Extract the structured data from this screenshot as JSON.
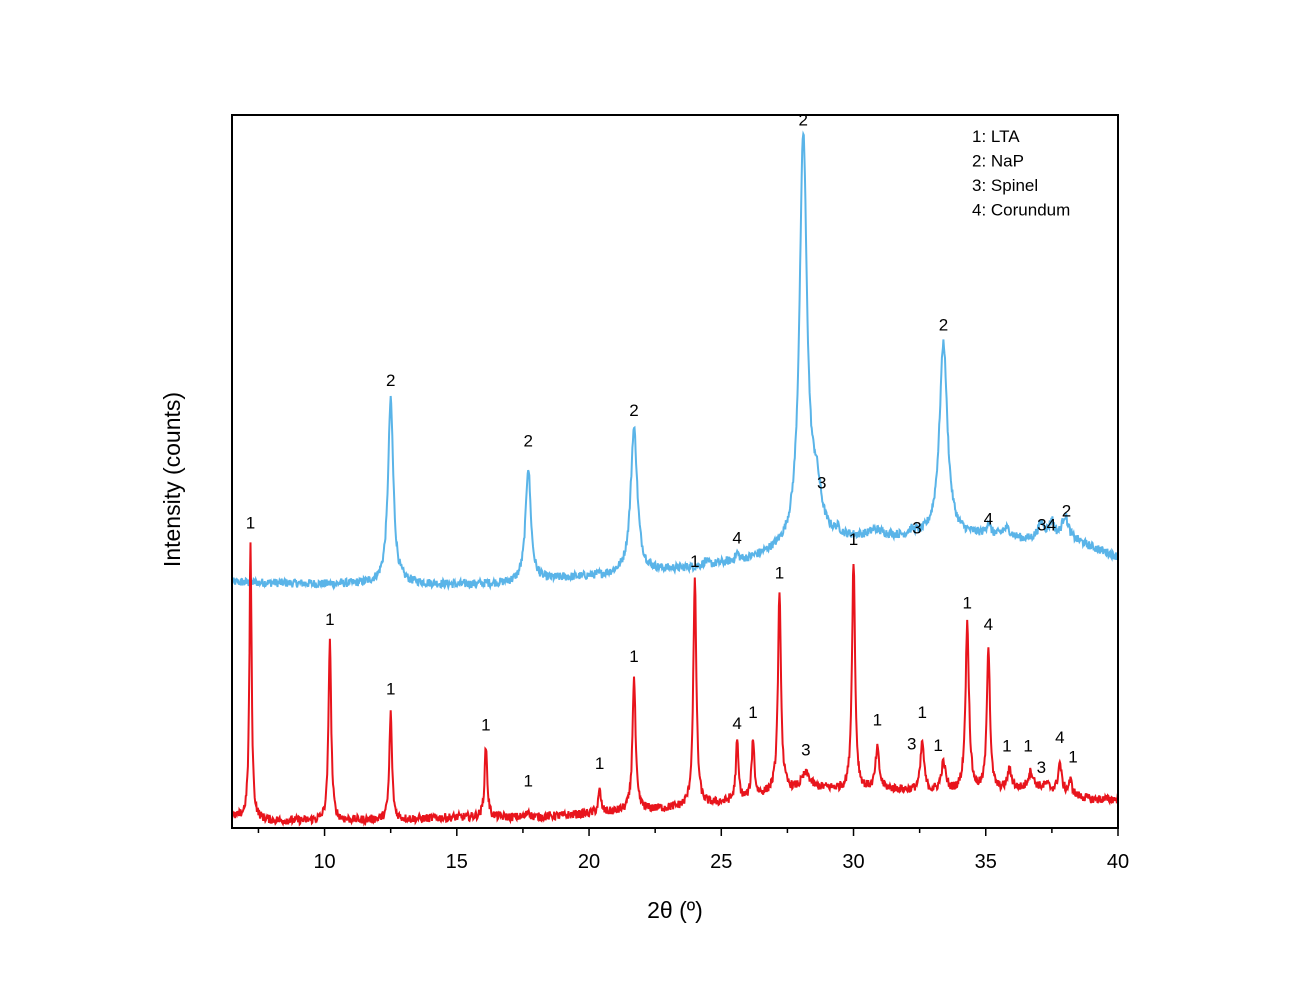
{
  "chart_data": {
    "type": "line",
    "title": "",
    "xlabel": "2θ (º)",
    "ylabel": "Intensity (counts)",
    "xlim": [
      6.5,
      40
    ],
    "ylim": [
      0,
      1.0
    ],
    "x_ticks": [
      10,
      15,
      20,
      25,
      30,
      35,
      40
    ],
    "y_ticks_shown": false,
    "grid": false,
    "legend_position": "top-right",
    "legend": [
      "1: LTA",
      "2: NaP",
      "3: Spinel",
      "4: Corundum"
    ],
    "series": [
      {
        "color": "#5ab4e8",
        "baseline": [
          [
            6.5,
            0.345
          ],
          [
            10,
            0.342
          ],
          [
            13,
            0.343
          ],
          [
            15,
            0.341
          ],
          [
            17,
            0.343
          ],
          [
            19,
            0.35
          ],
          [
            21,
            0.355
          ],
          [
            24,
            0.365
          ],
          [
            26,
            0.375
          ],
          [
            27,
            0.385
          ],
          [
            29,
            0.4
          ],
          [
            31,
            0.41
          ],
          [
            32,
            0.405
          ],
          [
            35,
            0.41
          ],
          [
            37,
            0.4
          ],
          [
            38.5,
            0.4
          ],
          [
            40,
            0.38
          ]
        ],
        "peaks": [
          {
            "x": 12.5,
            "y": 0.6,
            "w": 0.12
          },
          {
            "x": 17.7,
            "y": 0.505,
            "w": 0.12
          },
          {
            "x": 21.7,
            "y": 0.56,
            "w": 0.15
          },
          {
            "x": 24.4,
            "y": 0.373,
            "w": 0.08
          },
          {
            "x": 25.6,
            "y": 0.383,
            "w": 0.07
          },
          {
            "x": 28.1,
            "y": 0.965,
            "w": 0.17
          },
          {
            "x": 28.6,
            "y": 0.46,
            "w": 0.22
          },
          {
            "x": 29.4,
            "y": 0.41,
            "w": 0.12
          },
          {
            "x": 30.8,
            "y": 0.415,
            "w": 0.2
          },
          {
            "x": 32.2,
            "y": 0.413,
            "w": 0.2
          },
          {
            "x": 33.4,
            "y": 0.68,
            "w": 0.18
          },
          {
            "x": 35.1,
            "y": 0.425,
            "w": 0.08
          },
          {
            "x": 35.8,
            "y": 0.418,
            "w": 0.18
          },
          {
            "x": 37.1,
            "y": 0.425,
            "w": 0.18
          },
          {
            "x": 37.5,
            "y": 0.425,
            "w": 0.12
          },
          {
            "x": 38.0,
            "y": 0.435,
            "w": 0.16
          }
        ]
      },
      {
        "color": "#e8141c",
        "baseline": [
          [
            6.5,
            0.015
          ],
          [
            8,
            0.01
          ],
          [
            10,
            0.01
          ],
          [
            13,
            0.012
          ],
          [
            15,
            0.015
          ],
          [
            18,
            0.015
          ],
          [
            20,
            0.02
          ],
          [
            22,
            0.025
          ],
          [
            24,
            0.03
          ],
          [
            26,
            0.04
          ],
          [
            27,
            0.05
          ],
          [
            29,
            0.055
          ],
          [
            30,
            0.05
          ],
          [
            31,
            0.055
          ],
          [
            33,
            0.05
          ],
          [
            35,
            0.05
          ],
          [
            37,
            0.055
          ],
          [
            39,
            0.04
          ],
          [
            40,
            0.04
          ]
        ],
        "peaks": [
          {
            "x": 7.2,
            "y": 0.4,
            "w": 0.05
          },
          {
            "x": 10.2,
            "y": 0.265,
            "w": 0.06
          },
          {
            "x": 12.5,
            "y": 0.162,
            "w": 0.06
          },
          {
            "x": 16.1,
            "y": 0.115,
            "w": 0.06
          },
          {
            "x": 17.7,
            "y": 0.025,
            "w": 0.06
          },
          {
            "x": 20.4,
            "y": 0.052,
            "w": 0.06
          },
          {
            "x": 21.7,
            "y": 0.21,
            "w": 0.07
          },
          {
            "x": 24.0,
            "y": 0.345,
            "w": 0.07
          },
          {
            "x": 25.6,
            "y": 0.12,
            "w": 0.06
          },
          {
            "x": 26.2,
            "y": 0.125,
            "w": 0.06
          },
          {
            "x": 27.2,
            "y": 0.325,
            "w": 0.07
          },
          {
            "x": 28.2,
            "y": 0.075,
            "w": 0.2
          },
          {
            "x": 30.0,
            "y": 0.375,
            "w": 0.07
          },
          {
            "x": 30.9,
            "y": 0.11,
            "w": 0.08
          },
          {
            "x": 32.6,
            "y": 0.12,
            "w": 0.08
          },
          {
            "x": 33.4,
            "y": 0.09,
            "w": 0.1
          },
          {
            "x": 34.3,
            "y": 0.285,
            "w": 0.08
          },
          {
            "x": 35.1,
            "y": 0.255,
            "w": 0.07
          },
          {
            "x": 35.9,
            "y": 0.08,
            "w": 0.1
          },
          {
            "x": 36.7,
            "y": 0.078,
            "w": 0.12
          },
          {
            "x": 37.3,
            "y": 0.06,
            "w": 0.12
          },
          {
            "x": 37.8,
            "y": 0.09,
            "w": 0.08
          },
          {
            "x": 38.2,
            "y": 0.065,
            "w": 0.08
          }
        ]
      }
    ],
    "annotations": [
      {
        "text": "1",
        "x": 7.2,
        "y": 0.42
      },
      {
        "text": "2",
        "x": 12.5,
        "y": 0.62
      },
      {
        "text": "2",
        "x": 17.7,
        "y": 0.535
      },
      {
        "text": "2",
        "x": 21.7,
        "y": 0.578
      },
      {
        "text": "1",
        "x": 24.0,
        "y": 0.366
      },
      {
        "text": "4",
        "x": 25.6,
        "y": 0.399
      },
      {
        "text": "2",
        "x": 28.1,
        "y": 0.985
      },
      {
        "text": "3",
        "x": 28.8,
        "y": 0.476
      },
      {
        "text": "1",
        "x": 30.0,
        "y": 0.397
      },
      {
        "text": "3",
        "x": 32.4,
        "y": 0.413
      },
      {
        "text": "2",
        "x": 33.4,
        "y": 0.698
      },
      {
        "text": "4",
        "x": 35.1,
        "y": 0.426
      },
      {
        "text": "34",
        "x": 37.3,
        "y": 0.417
      },
      {
        "text": "2",
        "x": 38.05,
        "y": 0.437
      },
      {
        "text": "1",
        "x": 10.2,
        "y": 0.285
      },
      {
        "text": "1",
        "x": 12.5,
        "y": 0.187
      },
      {
        "text": "1",
        "x": 16.1,
        "y": 0.137
      },
      {
        "text": "1",
        "x": 17.7,
        "y": 0.058
      },
      {
        "text": "1",
        "x": 20.4,
        "y": 0.083
      },
      {
        "text": "1",
        "x": 21.7,
        "y": 0.233
      },
      {
        "text": "1",
        "x": 27.2,
        "y": 0.35
      },
      {
        "text": "4",
        "x": 25.6,
        "y": 0.139
      },
      {
        "text": "1",
        "x": 26.2,
        "y": 0.154
      },
      {
        "text": "3",
        "x": 28.2,
        "y": 0.102
      },
      {
        "text": "1",
        "x": 30.9,
        "y": 0.144
      },
      {
        "text": "3",
        "x": 32.2,
        "y": 0.11
      },
      {
        "text": "1",
        "x": 32.6,
        "y": 0.154
      },
      {
        "text": "1",
        "x": 33.2,
        "y": 0.108
      },
      {
        "text": "1",
        "x": 34.3,
        "y": 0.308
      },
      {
        "text": "4",
        "x": 35.1,
        "y": 0.278
      },
      {
        "text": "1",
        "x": 35.8,
        "y": 0.107
      },
      {
        "text": "1",
        "x": 36.6,
        "y": 0.107
      },
      {
        "text": "3",
        "x": 37.1,
        "y": 0.077
      },
      {
        "text": "4",
        "x": 37.8,
        "y": 0.119
      },
      {
        "text": "1",
        "x": 38.3,
        "y": 0.092
      }
    ]
  }
}
